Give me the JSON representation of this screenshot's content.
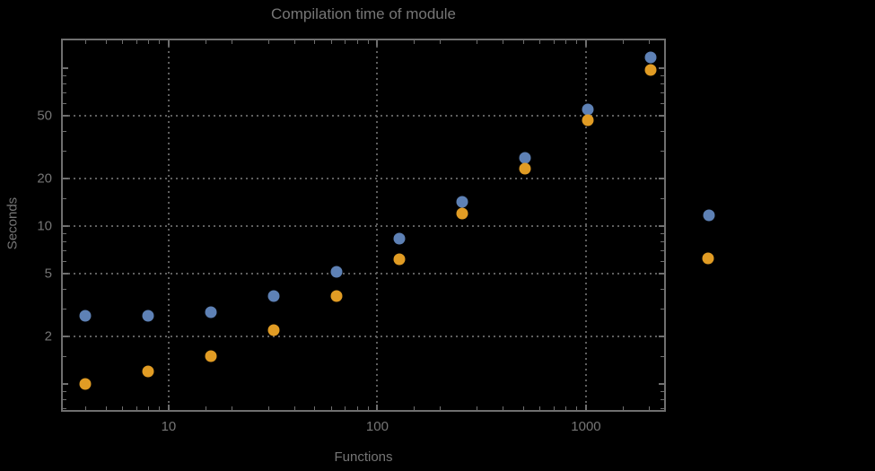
{
  "chart_data": {
    "type": "scatter",
    "title": "Compilation time of module",
    "xlabel": "Functions",
    "ylabel": "Seconds",
    "x_scale": "log",
    "y_scale": "log",
    "xlim": [
      3.08,
      2391
    ],
    "ylim": [
      0.675,
      152
    ],
    "grid": true,
    "x_gridlines": [
      10,
      100,
      1000
    ],
    "y_gridlines": [
      2,
      5,
      10,
      20,
      50
    ],
    "x_major_ticks": [
      10,
      100,
      1000
    ],
    "x_major_tick_labels": [
      "10",
      "100",
      "1000"
    ],
    "x_minor_ticks": [
      4,
      5,
      6,
      7,
      8,
      9,
      15,
      20,
      30,
      40,
      50,
      60,
      70,
      80,
      90,
      150,
      200,
      300,
      400,
      500,
      600,
      700,
      800,
      900,
      1500,
      2000
    ],
    "y_major_ticks": [
      1,
      2,
      5,
      10,
      20,
      50,
      100
    ],
    "y_labeled_ticks": [
      2,
      5,
      10,
      20,
      50
    ],
    "y_tick_labels": [
      "2",
      "5",
      "10",
      "20",
      "50"
    ],
    "y_minor_ticks": [
      0.7,
      0.8,
      0.9,
      1.5,
      3,
      4,
      6,
      7,
      8,
      9,
      15,
      30,
      40,
      60,
      70,
      80,
      90
    ],
    "x": [
      4,
      8,
      16,
      32,
      64,
      128,
      256,
      512,
      1024,
      2048
    ],
    "series": [
      {
        "name": "blue",
        "color": "#5e81b5",
        "values": [
          2.7,
          2.7,
          2.85,
          3.6,
          5.1,
          8.3,
          14.3,
          27,
          55,
          117
        ]
      },
      {
        "name": "orange",
        "color": "#e19c24",
        "values": [
          1.0,
          1.2,
          1.5,
          2.2,
          3.6,
          6.2,
          12,
          23,
          47,
          97
        ]
      }
    ],
    "legend_position": "right-outside",
    "legend_markers": [
      {
        "name": "blue",
        "color": "#5e81b5"
      },
      {
        "name": "orange",
        "color": "#e19c24"
      }
    ]
  },
  "colors": {
    "background": "#000000",
    "frame": "#6f6f6f",
    "grid": "#5f5f5f",
    "text": "#757575",
    "series_blue": "#5e81b5",
    "series_orange": "#e19c24"
  }
}
